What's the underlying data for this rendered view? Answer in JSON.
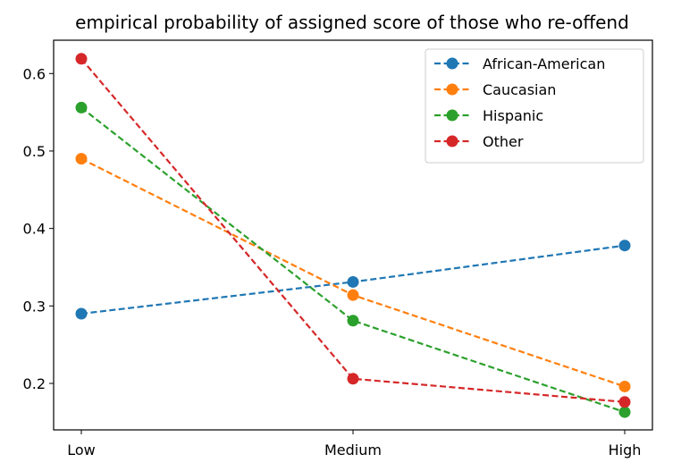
{
  "chart_data": {
    "type": "line",
    "title": "empirical probability of assigned score of those who re-offend",
    "xlabel": "",
    "ylabel": "",
    "categories": [
      "Low",
      "Medium",
      "High"
    ],
    "ylim": [
      0.14,
      0.643
    ],
    "yticks": [
      0.2,
      0.3,
      0.4,
      0.5,
      0.6
    ],
    "grid": false,
    "legend_position": "top-right",
    "line_style": "dashed",
    "marker": "circle",
    "series": [
      {
        "name": "African-American",
        "color": "#1f77b4",
        "values": [
          0.29,
          0.331,
          0.378
        ]
      },
      {
        "name": "Caucasian",
        "color": "#ff7f0e",
        "values": [
          0.49,
          0.314,
          0.196
        ]
      },
      {
        "name": "Hispanic",
        "color": "#2ca02c",
        "values": [
          0.556,
          0.281,
          0.163
        ]
      },
      {
        "name": "Other",
        "color": "#d62728",
        "values": [
          0.619,
          0.206,
          0.176
        ]
      }
    ]
  }
}
